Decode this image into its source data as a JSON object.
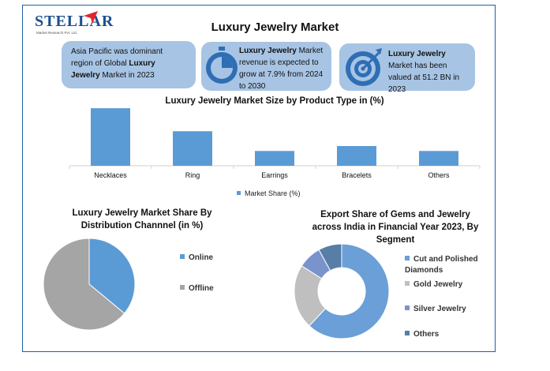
{
  "logo": {
    "brand": "STELLAR",
    "tagline": "Market Research Pvt. Ltd."
  },
  "title": "Luxury Jewelry Market",
  "cards": [
    {
      "pre": "Asia Pacific was dominant region of Global ",
      "bold": "Luxury Jewelry",
      "post": " Market in 2023",
      "icon": "none"
    },
    {
      "pre": "",
      "bold": "Luxury Jewelry",
      "post": " Market revenue is expected to grow at 7.9% from 2024 to 2030",
      "icon": "stopwatch-icon"
    },
    {
      "pre": "",
      "bold": "Luxury Jewelry",
      "post": " Market has been valued at 51.2 BN in 2023",
      "icon": "target-icon"
    }
  ],
  "colors": {
    "blue": "#5b9bd5",
    "gray": "#a5a5a5",
    "light_blue": "#a7c4e4",
    "donut_blue": "#6a9fd8",
    "donut_gray": "#bfbfbf",
    "donut_mid": "#7a93cc",
    "donut_dark": "#577ea6"
  },
  "chart_data": [
    {
      "type": "bar",
      "title": "Luxury Jewelry Market Size by Product Type in (%)",
      "categories": [
        "Necklaces",
        "Ring",
        "Earrings",
        "Bracelets",
        "Others"
      ],
      "series": [
        {
          "name": "Market Share (%)",
          "values": [
            35,
            21,
            9,
            12,
            9
          ]
        }
      ],
      "ylim": [
        0,
        36
      ],
      "legend": "bottom"
    },
    {
      "type": "pie",
      "title": "Luxury Jewelry Market Share By Distribution Channnel (in %)",
      "labels": [
        "Online",
        "Offline"
      ],
      "values": [
        36,
        64
      ],
      "legend": "right"
    },
    {
      "type": "pie",
      "title": "Export Share of Gems and Jewelry across India in Financial Year 2023, By Segment",
      "labels": [
        "Cut and Polished Diamonds",
        "Gold Jewelry",
        "Silver Jewelry",
        "Others"
      ],
      "values": [
        62,
        22,
        8,
        8
      ],
      "legend": "right"
    }
  ]
}
